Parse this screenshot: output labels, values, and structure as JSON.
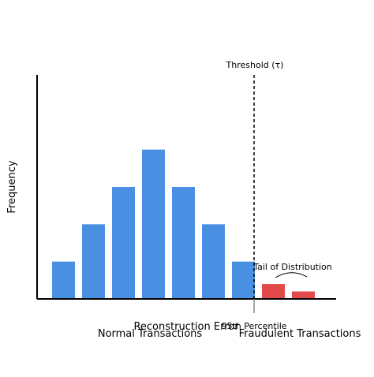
{
  "chart_data": {
    "type": "bar",
    "xlabel": "Reconstruction Error",
    "ylabel": "Frequency",
    "ylim": [
      0,
      6
    ],
    "series": [
      {
        "name": "Normal Transactions",
        "color": "#4a90e2",
        "values": [
          1,
          2,
          3,
          4,
          3,
          2,
          1
        ]
      },
      {
        "name": "Fraudulent Transactions",
        "color": "#e24a4a",
        "values": [
          0.4,
          0.2
        ]
      }
    ],
    "annotations": {
      "threshold": "Threshold (τ)",
      "percentile": "95th Percentile",
      "tail": "Tail of Distribution"
    },
    "grid": false,
    "legend": "bottom"
  }
}
